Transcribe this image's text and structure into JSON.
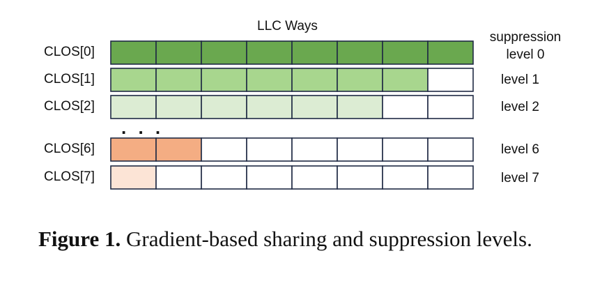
{
  "title": "LLC Ways",
  "header": {
    "suppression_label": "suppression",
    "level0_label": "level 0"
  },
  "ellipsis": ". . .",
  "rows": [
    {
      "clos": "CLOS[0]",
      "level": "level 0",
      "filled": 8,
      "color": "#6aa84f"
    },
    {
      "clos": "CLOS[1]",
      "level": "level 1",
      "filled": 7,
      "color": "#a8d68e"
    },
    {
      "clos": "CLOS[2]",
      "level": "level 2",
      "filled": 6,
      "color": "#dcecd3"
    },
    {
      "clos": "CLOS[6]",
      "level": "level 6",
      "filled": 2,
      "color": "#f4ad83"
    },
    {
      "clos": "CLOS[7]",
      "level": "level 7",
      "filled": 1,
      "color": "#fce4d6"
    }
  ],
  "ways_per_row": 8,
  "colors": {
    "border": "#1f2a44",
    "empty": "#ffffff"
  },
  "caption": {
    "label": "Figure 1.",
    "text": "Gradient-based sharing and suppression levels."
  }
}
